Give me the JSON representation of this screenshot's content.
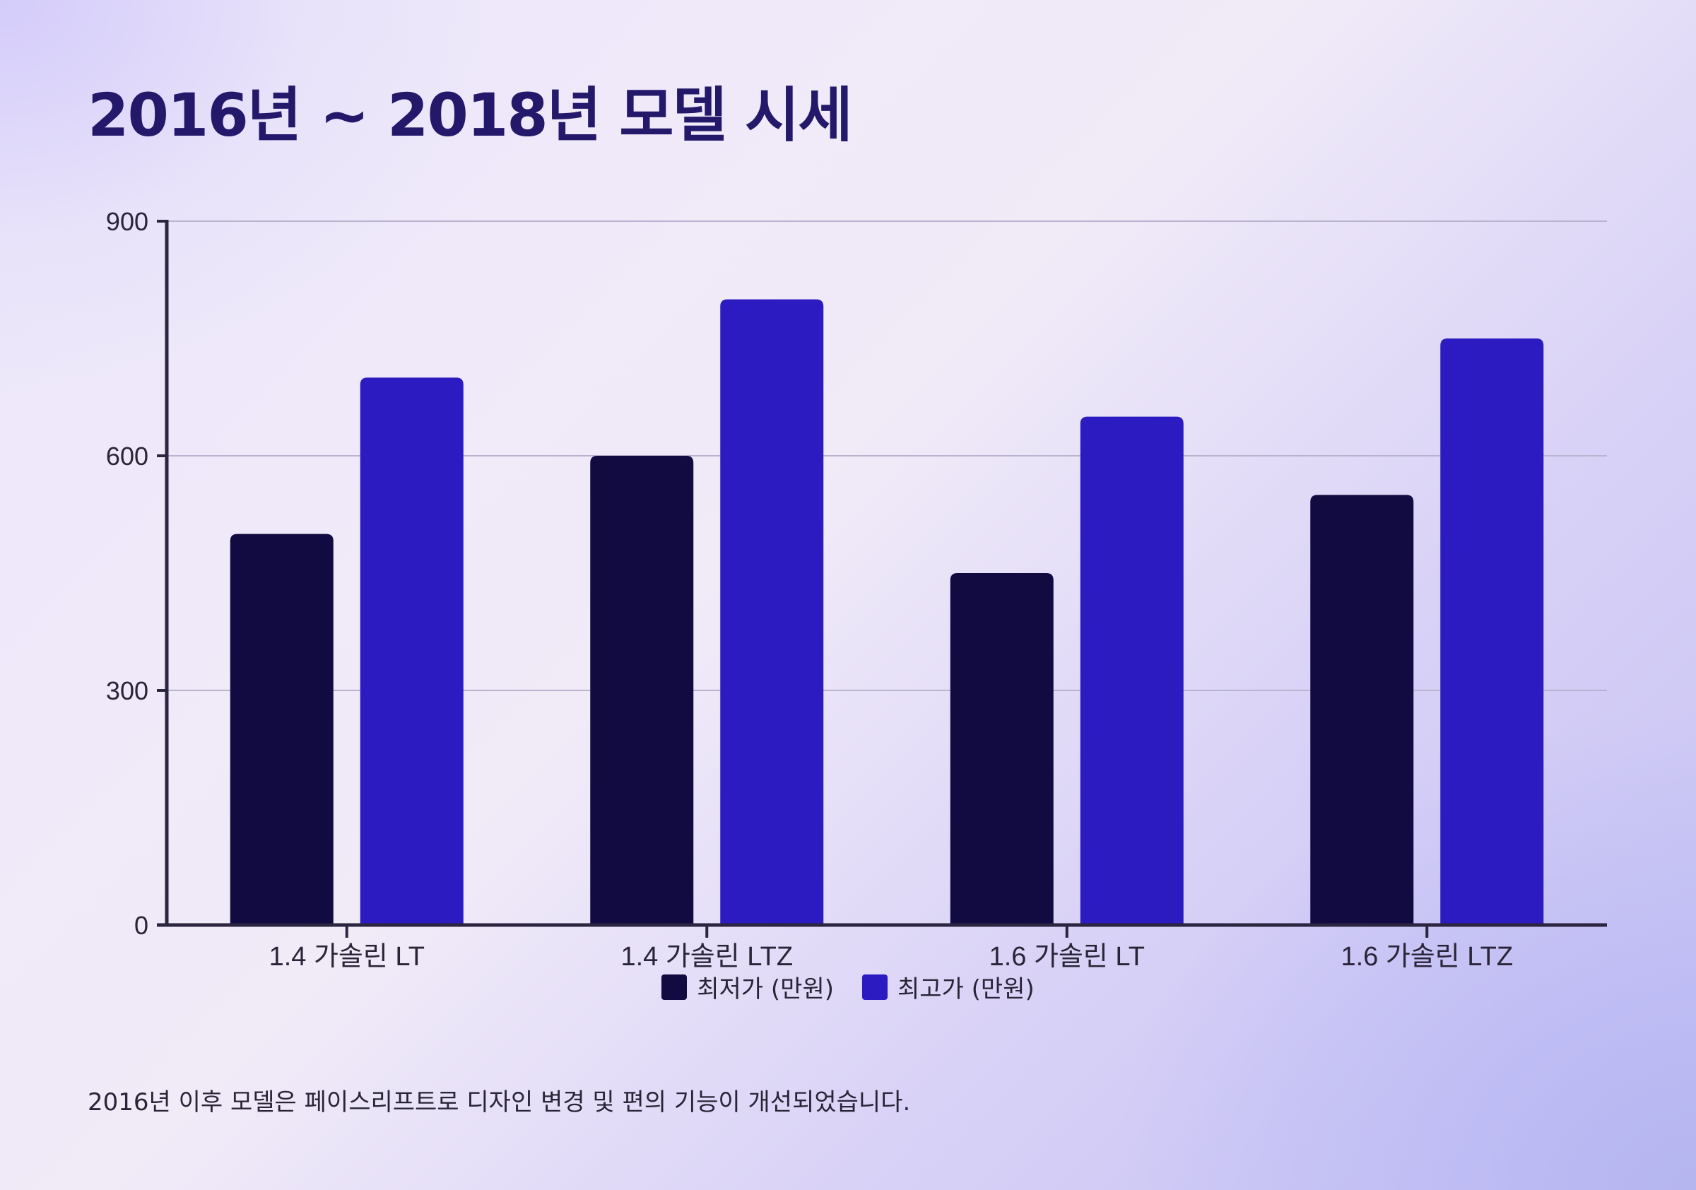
{
  "title": "2016년 ~ 2018년 모델 시세",
  "footnote": "2016년 이후 모델은 페이스리프트로 디자인 변경 및 편의 기능이 개선되었습니다.",
  "chart_data": {
    "type": "bar",
    "categories": [
      "1.4 가솔린 LT",
      "1.4 가솔린 LTZ",
      "1.6 가솔린 LT",
      "1.6 가솔린 LTZ"
    ],
    "series": [
      {
        "name": "최저가 (만원)",
        "values": [
          500,
          600,
          450,
          550
        ],
        "color": "#110b42"
      },
      {
        "name": "최고가 (만원)",
        "values": [
          700,
          800,
          650,
          750
        ],
        "color": "#2c1bc0"
      }
    ],
    "ylim": [
      0,
      900
    ],
    "yticks": [
      0,
      300,
      600,
      900
    ],
    "grid": true,
    "legend": "bottom-center",
    "xlabel": "",
    "ylabel": ""
  },
  "colors": {
    "title": "#24186a",
    "axis": "#2b2540",
    "grid": "#b9b3cf"
  }
}
